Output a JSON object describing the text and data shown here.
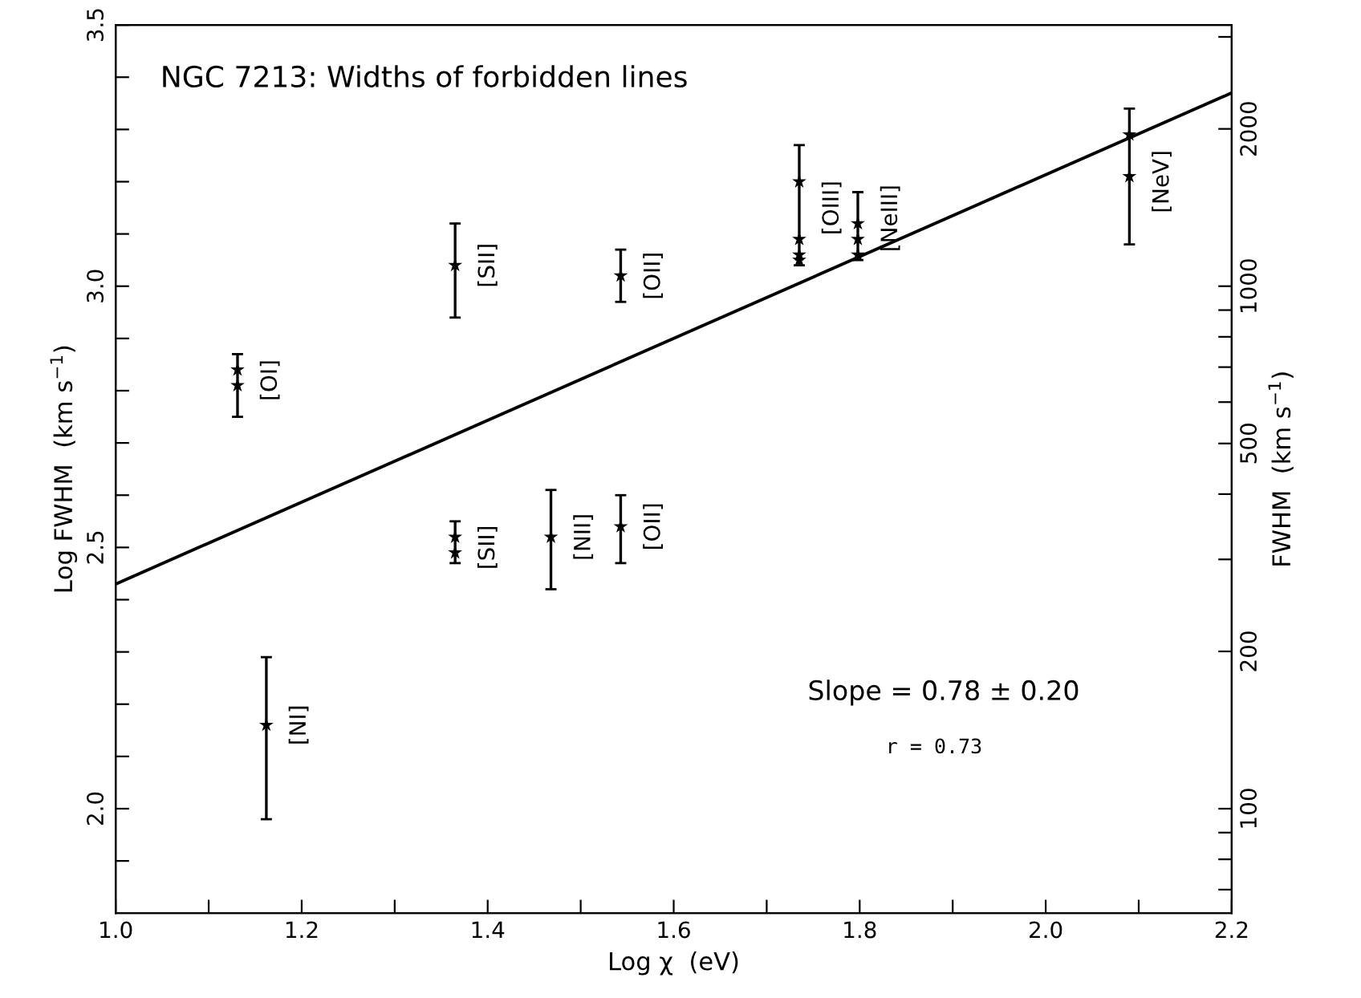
{
  "chart_data": {
    "type": "scatter",
    "title": "NGC 7213: Widths of forbidden lines",
    "xlabel": "Log χ  (eV)",
    "ylabel": "Log FWHM  (km s$^{−1}$)",
    "y2label": "FWHM  (km s$^{−1}$)",
    "xlim": [
      1.0,
      2.2
    ],
    "ylim": [
      1.8,
      3.5
    ],
    "y2lim": [
      63.1,
      3162
    ],
    "log": "y2",
    "xticks": [
      {
        "value": 1.0,
        "label": "1.0"
      },
      {
        "value": 1.1,
        "label": null
      },
      1.2,
      {
        "value": 1.3,
        "label": null
      },
      1.4,
      {
        "value": 1.5,
        "label": null
      },
      1.6,
      {
        "value": 1.7,
        "label": null
      },
      1.8,
      {
        "value": 1.9,
        "label": null
      },
      {
        "value": 2.0,
        "label": "2.0"
      },
      {
        "value": 2.1,
        "label": null
      },
      2.2
    ],
    "yticks": [
      {
        "value": 1.9,
        "label": null
      },
      {
        "value": 2.0,
        "label": "2.0"
      },
      {
        "value": 2.1,
        "label": null
      },
      {
        "value": 2.2,
        "label": null
      },
      {
        "value": 2.3,
        "label": null
      },
      {
        "value": 2.4,
        "label": null
      },
      2.5,
      {
        "value": 2.6,
        "label": null
      },
      {
        "value": 2.7,
        "label": null
      },
      {
        "value": 2.8,
        "label": null
      },
      {
        "value": 2.9,
        "label": null
      },
      {
        "value": 3.0,
        "label": "3.0"
      },
      {
        "value": 3.1,
        "label": null
      },
      {
        "value": 3.2,
        "label": null
      },
      {
        "value": 3.3,
        "label": null
      },
      {
        "value": 3.4,
        "label": null
      },
      3.5
    ],
    "y2ticks": [
      {
        "value": 70,
        "label": null
      },
      {
        "value": 80,
        "label": null
      },
      {
        "value": 90,
        "label": null
      },
      100,
      200,
      {
        "value": 300,
        "label": null
      },
      {
        "value": 400,
        "label": null
      },
      500,
      {
        "value": 600,
        "label": null
      },
      {
        "value": 700,
        "label": null
      },
      {
        "value": 800,
        "label": null
      },
      {
        "value": 900,
        "label": null
      },
      1000,
      2000,
      {
        "value": 3000,
        "label": null
      }
    ],
    "marker": "star",
    "grid": false,
    "legend": false,
    "series": [
      {
        "color": "#000000",
        "x": [
          1.131,
          1.131,
          1.162,
          1.365,
          1.365,
          1.365,
          1.468,
          1.543,
          1.543,
          1.735,
          1.735,
          1.735,
          1.735,
          1.798,
          1.798,
          1.798,
          2.09,
          2.09
        ],
        "values": [
          2.84,
          2.81,
          2.16,
          3.04,
          2.52,
          2.49,
          2.52,
          3.02,
          2.54,
          3.2,
          3.09,
          3.06,
          3.05,
          3.12,
          3.09,
          3.06,
          3.29,
          3.21
        ],
        "errors": [
          [
            2.75,
            2.87
          ],
          null,
          [
            1.98,
            2.29
          ],
          [
            2.94,
            3.12
          ],
          [
            2.47,
            2.55
          ],
          null,
          [
            2.42,
            2.61
          ],
          [
            2.97,
            3.07
          ],
          [
            2.47,
            2.6
          ],
          [
            3.04,
            3.27
          ],
          null,
          null,
          null,
          [
            3.05,
            3.18
          ],
          null,
          null,
          [
            3.08,
            3.34
          ],
          null
        ]
      },
      {
        "type": "line",
        "color": "#000000",
        "x": [
          1.0,
          2.2
        ],
        "values": [
          2.43,
          3.37
        ],
        "line_style": "solid",
        "marker": "none"
      }
    ],
    "annotations": [
      {
        "text": "[OI]",
        "x": 1.131,
        "y": 2.82
      },
      {
        "text": "[NI]",
        "x": 1.162,
        "y": 2.16
      },
      {
        "text": "[SII]",
        "x": 1.365,
        "y": 3.04
      },
      {
        "text": "[SII]",
        "x": 1.365,
        "y": 2.5
      },
      {
        "text": "[NII]",
        "x": 1.468,
        "y": 2.52
      },
      {
        "text": "[OII]",
        "x": 1.543,
        "y": 3.02
      },
      {
        "text": "[OII]",
        "x": 1.543,
        "y": 2.54
      },
      {
        "text": "[OIII]",
        "x": 1.735,
        "y": 3.15
      },
      {
        "text": "[NeIII]",
        "x": 1.798,
        "y": 3.13
      },
      {
        "text": "[NeV]",
        "x": 2.09,
        "y": 3.2
      },
      "Slope = 0.78 ± 0.20",
      "r = 0.73"
    ]
  }
}
